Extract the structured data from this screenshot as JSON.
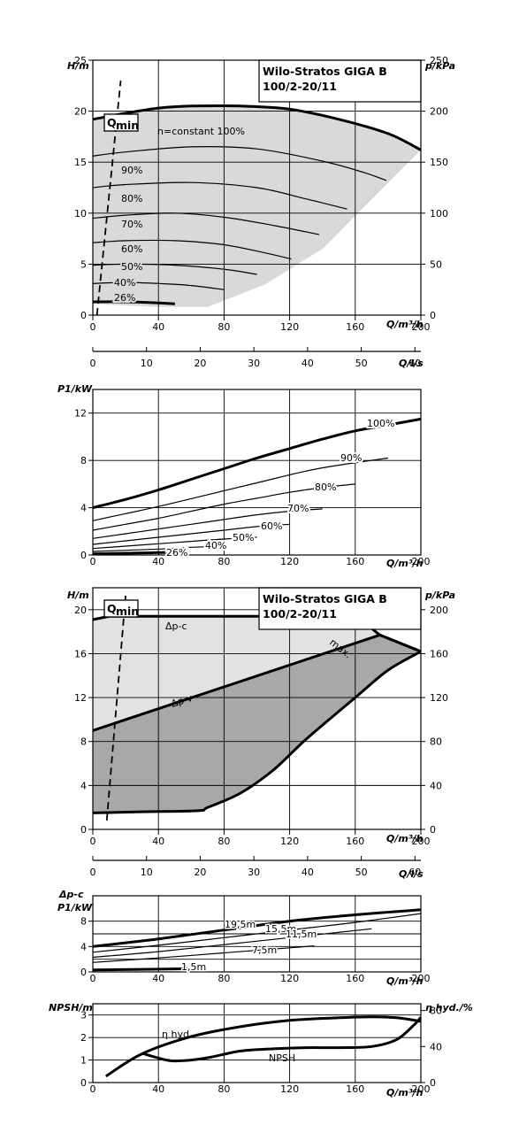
{
  "product": {
    "title_line1": "Wilo-Stratos GIGA B",
    "title_line2": "100/2-20/11"
  },
  "chart_data": [
    {
      "id": "head_speed",
      "type": "line",
      "ylabel": "H/m",
      "y2label": "p/kPa",
      "xlabel": "Q/m³/h",
      "xlim": [
        0,
        200
      ],
      "ylim": [
        0,
        25
      ],
      "y2lim": [
        0,
        250
      ],
      "x_ticks": [
        0,
        40,
        80,
        120,
        160,
        200
      ],
      "y_ticks": [
        0,
        5,
        10,
        15,
        20,
        25
      ],
      "y2_ticks": [
        0,
        50,
        100,
        150,
        200,
        250
      ],
      "grid": true,
      "qmin": {
        "label": "Qmin",
        "sub": "min",
        "main": "Q",
        "x": [
          2.5,
          17
        ],
        "y": [
          0,
          23
        ]
      },
      "envelope": [
        [
          0,
          19.2
        ],
        [
          15,
          19.8
        ],
        [
          40,
          20.3
        ],
        [
          60,
          20.5
        ],
        [
          90,
          20.5
        ],
        [
          120,
          20.2
        ],
        [
          150,
          19.2
        ],
        [
          180,
          17.8
        ],
        [
          200,
          16.2
        ],
        [
          140,
          6.5
        ],
        [
          105,
          3
        ],
        [
          70,
          0.8
        ],
        [
          40,
          0.8
        ],
        [
          0,
          1.1
        ]
      ],
      "series": [
        {
          "name": "n=constant 100%",
          "x": [
            0,
            20,
            40,
            60,
            90,
            120,
            150,
            180,
            200
          ],
          "y": [
            19.2,
            19.8,
            20.3,
            20.5,
            20.5,
            20.2,
            19.2,
            17.8,
            16.2
          ]
        },
        {
          "name": "90%",
          "x": [
            0,
            20,
            60,
            100,
            140,
            165,
            179
          ],
          "y": [
            15.6,
            16.0,
            16.5,
            16.3,
            15.1,
            14.0,
            13.2
          ]
        },
        {
          "name": "80%",
          "x": [
            0,
            20,
            60,
            100,
            130,
            155
          ],
          "y": [
            12.5,
            12.8,
            13.0,
            12.5,
            11.4,
            10.4
          ]
        },
        {
          "name": "70%",
          "x": [
            0,
            20,
            50,
            80,
            110,
            138
          ],
          "y": [
            9.5,
            9.8,
            10.0,
            9.6,
            8.8,
            7.9
          ]
        },
        {
          "name": "60%",
          "x": [
            0,
            20,
            50,
            80,
            105,
            121
          ],
          "y": [
            7.1,
            7.3,
            7.3,
            6.9,
            6.1,
            5.5
          ]
        },
        {
          "name": "50%",
          "x": [
            0,
            20,
            50,
            80,
            100
          ],
          "y": [
            4.9,
            5.0,
            4.9,
            4.5,
            4.0
          ]
        },
        {
          "name": "40%",
          "x": [
            0,
            20,
            40,
            60,
            80
          ],
          "y": [
            3.1,
            3.2,
            3.1,
            2.9,
            2.5
          ]
        },
        {
          "name": "26%",
          "x": [
            0,
            20,
            40,
            50
          ],
          "y": [
            1.3,
            1.3,
            1.2,
            1.1
          ]
        }
      ]
    },
    {
      "id": "flow_ls_axis",
      "type": "axis",
      "xlabel": "Q/l/s",
      "xlim": [
        0,
        61.1
      ],
      "x_ticks": [
        0,
        10,
        20,
        30,
        40,
        50,
        60
      ]
    },
    {
      "id": "power_speed",
      "type": "line",
      "ylabel": "P1/kW",
      "xlabel": "Q/m³/h",
      "xlim": [
        0,
        200
      ],
      "ylim": [
        0,
        14
      ],
      "x_ticks": [
        0,
        40,
        80,
        120,
        160,
        200
      ],
      "y_ticks": [
        0,
        4,
        8,
        12
      ],
      "grid": true,
      "series": [
        {
          "name": "100%",
          "x": [
            0,
            20,
            40,
            60,
            80,
            100,
            120,
            140,
            160,
            180,
            200
          ],
          "y": [
            4.0,
            4.7,
            5.5,
            6.4,
            7.3,
            8.2,
            9.0,
            9.8,
            10.5,
            11.0,
            11.5
          ]
        },
        {
          "name": "90%",
          "x": [
            0,
            20,
            40,
            70,
            100,
            130,
            150,
            180
          ],
          "y": [
            2.9,
            3.5,
            4.1,
            5.1,
            6.1,
            7.1,
            7.6,
            8.2
          ]
        },
        {
          "name": "80%",
          "x": [
            0,
            20,
            40,
            60,
            80,
            100,
            120,
            140,
            160
          ],
          "y": [
            2.1,
            2.6,
            3.1,
            3.7,
            4.3,
            4.8,
            5.3,
            5.7,
            6.0
          ]
        },
        {
          "name": "70%",
          "x": [
            0,
            20,
            40,
            60,
            80,
            100,
            120,
            140
          ],
          "y": [
            1.4,
            1.8,
            2.2,
            2.6,
            3.0,
            3.4,
            3.7,
            3.9
          ]
        },
        {
          "name": "60%",
          "x": [
            0,
            20,
            40,
            60,
            80,
            100,
            120
          ],
          "y": [
            0.9,
            1.2,
            1.5,
            1.8,
            2.1,
            2.4,
            2.6
          ]
        },
        {
          "name": "50%",
          "x": [
            0,
            20,
            40,
            60,
            80,
            100
          ],
          "y": [
            0.55,
            0.75,
            0.95,
            1.15,
            1.35,
            1.5
          ]
        },
        {
          "name": "40%",
          "x": [
            0,
            20,
            40,
            60,
            80
          ],
          "y": [
            0.3,
            0.4,
            0.5,
            0.65,
            0.75
          ]
        },
        {
          "name": "26%",
          "x": [
            0,
            20,
            40,
            50
          ],
          "y": [
            0.1,
            0.15,
            0.2,
            0.25
          ]
        }
      ]
    },
    {
      "id": "head_control",
      "type": "area",
      "ylabel": "H/m",
      "y2label": "p/kPa",
      "xlabel": "Q/m³/h",
      "xlim": [
        0,
        200
      ],
      "ylim": [
        0,
        22
      ],
      "y2lim": [
        0,
        220
      ],
      "x_ticks": [
        0,
        40,
        80,
        120,
        160,
        200
      ],
      "y_ticks": [
        0,
        4,
        8,
        12,
        16,
        20
      ],
      "y2_ticks": [
        0,
        40,
        80,
        120,
        160,
        200
      ],
      "grid": true,
      "qmin": {
        "label": "Qmin",
        "sub": "min",
        "main": "Q",
        "x": [
          8.5,
          20
        ],
        "y": [
          0.8,
          21.3
        ]
      },
      "annotations": [
        "Δp-c",
        "Δp-v",
        "max."
      ],
      "dpc": {
        "x": [
          0,
          10,
          145,
          165,
          175
        ],
        "y": [
          19.1,
          19.4,
          19.4,
          18.9,
          17.7
        ]
      },
      "dpv": {
        "x": [
          0,
          175,
          200
        ],
        "y": [
          9.0,
          17.7,
          16.2
        ]
      },
      "max": {
        "x": [
          0,
          150,
          200
        ],
        "y": [
          19.1,
          19.4,
          16.2
        ]
      },
      "min_curve": {
        "x": [
          0,
          30,
          64,
          70,
          90,
          110,
          130,
          160,
          180,
          200
        ],
        "y": [
          1.5,
          1.6,
          1.7,
          2.0,
          3.3,
          5.4,
          8.2,
          12.0,
          14.5,
          16.2
        ]
      }
    },
    {
      "id": "flow_ls_axis_2",
      "type": "axis",
      "xlabel": "Q/l/s",
      "xlim": [
        0,
        61.1
      ],
      "x_ticks": [
        0,
        10,
        20,
        30,
        40,
        50,
        60
      ]
    },
    {
      "id": "power_control",
      "type": "line",
      "ylabel_line1": "Δp-c",
      "ylabel_line2": "P1/kW",
      "xlabel": "Q/m³/h",
      "xlim": [
        0,
        200
      ],
      "ylim": [
        0,
        12
      ],
      "x_ticks": [
        0,
        40,
        80,
        120,
        160,
        200
      ],
      "y_ticks": [
        0,
        4,
        8
      ],
      "ytick_labels_extra": [
        2,
        6
      ],
      "grid": true,
      "series": [
        {
          "name": "19,5m",
          "x": [
            0,
            40,
            80,
            120,
            160,
            200
          ],
          "y": [
            4.0,
            5.2,
            6.6,
            8.0,
            9.0,
            9.8
          ]
        },
        {
          "name": "15,5m",
          "x": [
            0,
            40,
            80,
            120,
            160,
            200
          ],
          "y": [
            3.1,
            4.2,
            5.4,
            6.6,
            7.8,
            9.2
          ]
        },
        {
          "name": "11,5m",
          "x": [
            0,
            40,
            80,
            120,
            170
          ],
          "y": [
            2.3,
            3.2,
            4.3,
            5.4,
            6.8
          ]
        },
        {
          "name": "7,5m",
          "x": [
            0,
            40,
            80,
            120,
            135
          ],
          "y": [
            1.5,
            2.2,
            3.0,
            3.8,
            4.1
          ]
        },
        {
          "name": "1,5m",
          "x": [
            0,
            60
          ],
          "y": [
            0.3,
            0.5
          ]
        }
      ]
    },
    {
      "id": "npsh_efficiency",
      "type": "line",
      "ylabel": "NPSH/m",
      "y2label": "η hyd./%",
      "xlabel": "Q/m³/h",
      "xlim": [
        0,
        200
      ],
      "ylim": [
        0,
        3.5
      ],
      "y2lim": [
        0,
        87.5
      ],
      "x_ticks": [
        0,
        40,
        80,
        120,
        160,
        200
      ],
      "y_ticks": [
        0,
        1,
        2,
        3
      ],
      "y2_ticks": [
        0,
        40,
        80
      ],
      "grid": true,
      "series": [
        {
          "name": "η hyd.",
          "axis": "right",
          "x": [
            8,
            30,
            60,
            90,
            120,
            150,
            170,
            185,
            200
          ],
          "y": [
            7,
            32,
            51,
            62,
            69,
            72,
            73,
            72,
            68
          ]
        },
        {
          "name": "NPSH",
          "axis": "left",
          "x": [
            30,
            45,
            55,
            70,
            90,
            110,
            130,
            150,
            170,
            185,
            195,
            200
          ],
          "y": [
            1.3,
            1.0,
            0.97,
            1.1,
            1.4,
            1.5,
            1.55,
            1.55,
            1.6,
            1.9,
            2.5,
            2.9
          ]
        }
      ]
    }
  ]
}
